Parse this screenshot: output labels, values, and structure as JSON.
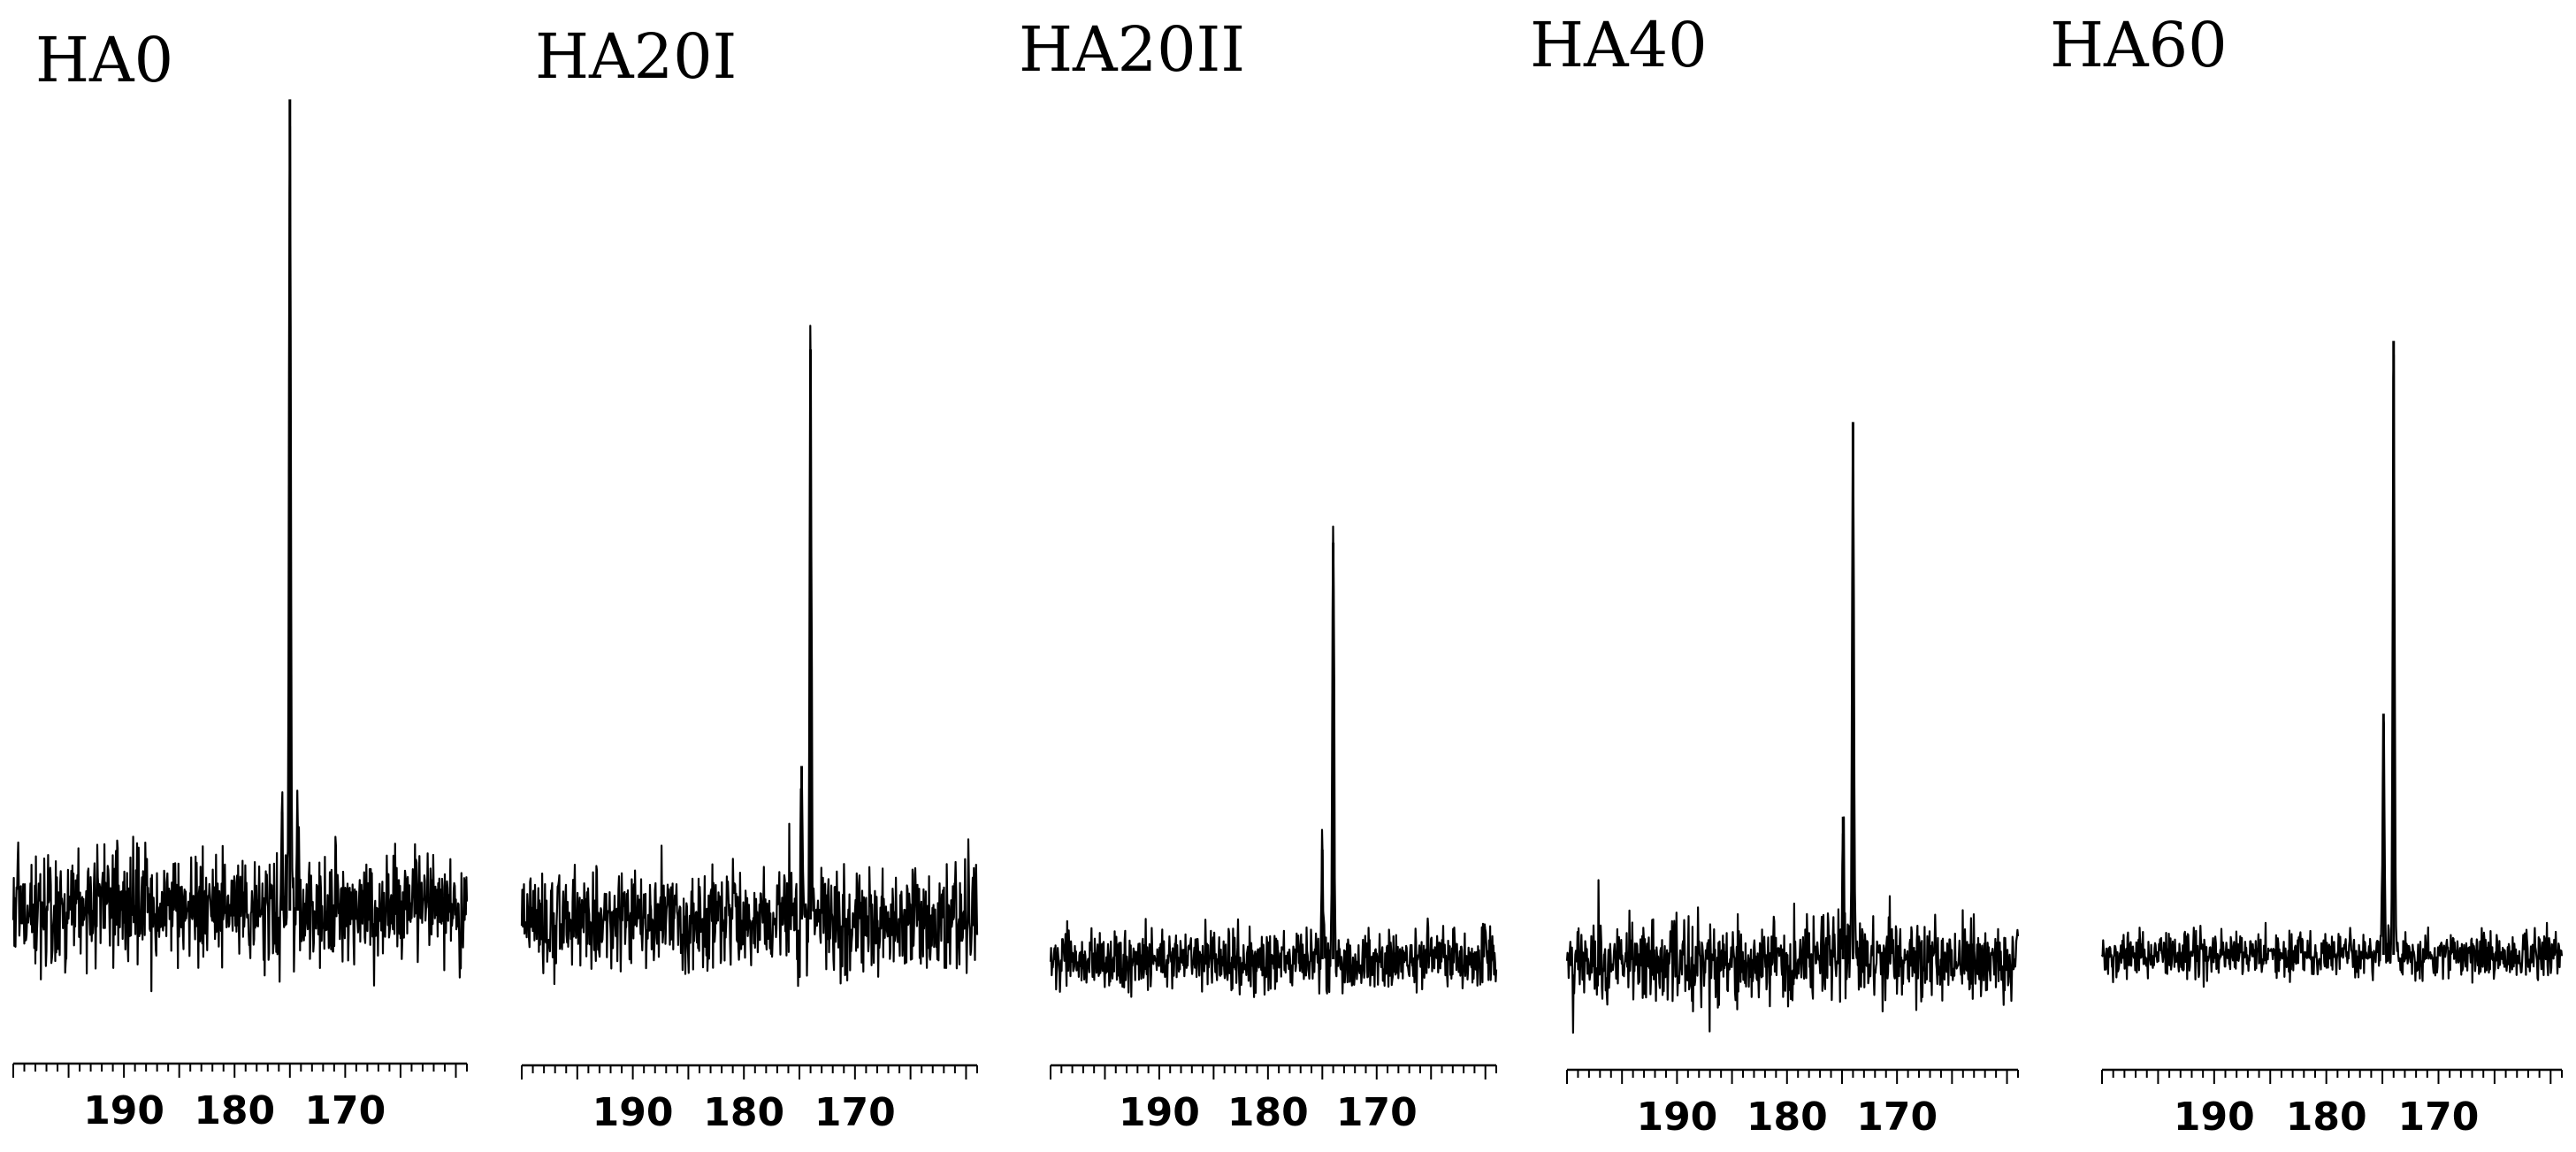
{
  "chart_data": [
    {
      "type": "line",
      "title": "HA0",
      "xlabel": "",
      "ylabel": "",
      "x_range": [
        200,
        159
      ],
      "x_tick_labels": [
        "190",
        "180",
        "170"
      ],
      "x_ticks": [
        190,
        180,
        170
      ],
      "noise_amplitude": 0.28,
      "series": [
        {
          "peaks": [
            {
              "x": 175.0,
              "height": 3.7
            },
            {
              "x": 175.7,
              "height": 0.45
            },
            {
              "x": 174.3,
              "height": 0.35
            }
          ]
        }
      ]
    },
    {
      "type": "line",
      "title": "HA20I",
      "xlabel": "",
      "ylabel": "",
      "x_range": [
        200,
        159
      ],
      "x_tick_labels": [
        "190",
        "180",
        "170"
      ],
      "x_ticks": [
        190,
        180,
        170
      ],
      "noise_amplitude": 0.25,
      "series": [
        {
          "peaks": [
            {
              "x": 174.0,
              "height": 2.6
            },
            {
              "x": 174.8,
              "height": 0.7
            }
          ]
        }
      ]
    },
    {
      "type": "line",
      "title": "HA20II",
      "xlabel": "",
      "ylabel": "",
      "x_range": [
        200,
        159
      ],
      "x_tick_labels": [
        "190",
        "180",
        "170"
      ],
      "x_ticks": [
        190,
        180,
        170
      ],
      "noise_amplitude": 0.15,
      "series": [
        {
          "peaks": [
            {
              "x": 174.0,
              "height": 1.9
            },
            {
              "x": 175.0,
              "height": 0.5
            }
          ]
        }
      ]
    },
    {
      "type": "line",
      "title": "HA40",
      "xlabel": "",
      "ylabel": "",
      "x_range": [
        200,
        159
      ],
      "x_tick_labels": [
        "190",
        "180",
        "170"
      ],
      "x_ticks": [
        190,
        180,
        170
      ],
      "noise_amplitude": 0.2,
      "series": [
        {
          "peaks": [
            {
              "x": 174.0,
              "height": 2.45
            },
            {
              "x": 174.9,
              "height": 0.65
            }
          ]
        }
      ]
    },
    {
      "type": "line",
      "title": "HA60",
      "xlabel": "",
      "ylabel": "",
      "x_range": [
        200,
        159
      ],
      "x_tick_labels": [
        "190",
        "180",
        "170"
      ],
      "x_ticks": [
        190,
        180,
        170
      ],
      "noise_amplitude": 0.11,
      "series": [
        {
          "peaks": [
            {
              "x": 174.0,
              "height": 2.8
            },
            {
              "x": 174.9,
              "height": 1.1
            }
          ]
        }
      ]
    }
  ]
}
